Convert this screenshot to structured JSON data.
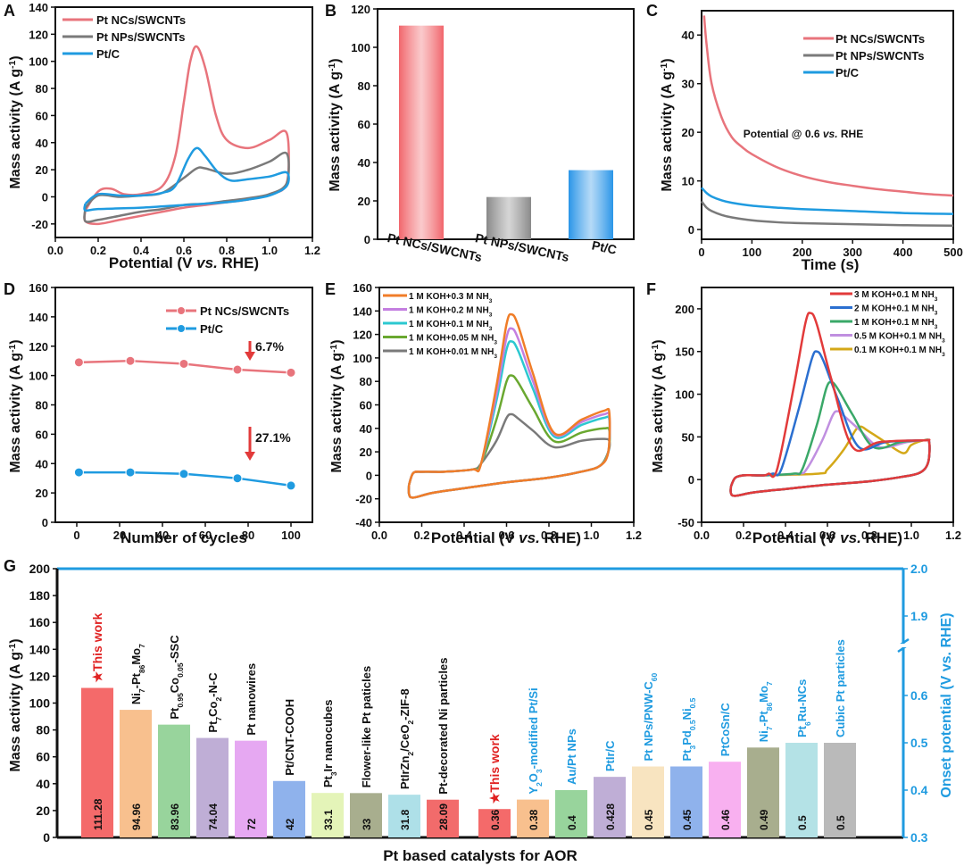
{
  "chart_data": [
    {
      "panel": "A",
      "type": "line",
      "title": "",
      "xlabel": "Potential (V vs. RHE)",
      "ylabel": "Mass activity (A g-1)",
      "xlim": [
        0.0,
        1.2
      ],
      "ylim": [
        -30,
        140
      ],
      "xticks": [
        "0.0",
        "0.2",
        "0.4",
        "0.6",
        "0.8",
        "1.0",
        "1.2"
      ],
      "yticks": [
        "-20",
        "0",
        "20",
        "40",
        "60",
        "80",
        "100",
        "120",
        "140"
      ],
      "legend": "top-left",
      "series": [
        {
          "name": "Pt NCs/SWCNTs",
          "color": "#e8747c",
          "x": [
            0.14,
            0.2,
            0.26,
            0.32,
            0.4,
            0.5,
            0.56,
            0.6,
            0.63,
            0.66,
            0.7,
            0.75,
            0.8,
            0.9,
            1.0,
            1.08,
            1.08,
            1.0,
            0.9,
            0.8,
            0.7,
            0.6,
            0.5,
            0.4,
            0.3,
            0.2,
            0.14,
            0.14
          ],
          "y": [
            -10,
            4,
            6,
            2,
            2,
            8,
            30,
            70,
            100,
            111,
            95,
            60,
            42,
            36,
            42,
            47,
            10,
            2,
            -2,
            -4,
            -6,
            -8,
            -11,
            -14,
            -17,
            -20,
            -18,
            -10
          ]
        },
        {
          "name": "Pt NPs/SWCNTs",
          "color": "#7a7a7a",
          "x": [
            0.14,
            0.2,
            0.3,
            0.4,
            0.5,
            0.6,
            0.66,
            0.7,
            0.8,
            0.9,
            1.0,
            1.08,
            1.08,
            1.0,
            0.9,
            0.8,
            0.7,
            0.6,
            0.5,
            0.4,
            0.3,
            0.2,
            0.14,
            0.14
          ],
          "y": [
            -8,
            1,
            0,
            1,
            3,
            14,
            21,
            21,
            17,
            20,
            26,
            32,
            10,
            2,
            -1,
            -3,
            -5,
            -6,
            -9,
            -11,
            -14,
            -17,
            -18,
            -8
          ]
        },
        {
          "name": "Pt/C",
          "color": "#1f9be0",
          "x": [
            0.14,
            0.2,
            0.3,
            0.4,
            0.5,
            0.56,
            0.62,
            0.66,
            0.7,
            0.76,
            0.82,
            0.9,
            1.0,
            1.08,
            1.08,
            1.0,
            0.9,
            0.8,
            0.6,
            0.4,
            0.2,
            0.14,
            0.14
          ],
          "y": [
            -5,
            2,
            1,
            1,
            3,
            8,
            28,
            36,
            30,
            18,
            12,
            13,
            15,
            18,
            8,
            1,
            -2,
            -4,
            -6,
            -8,
            -9,
            -10,
            -5
          ]
        }
      ]
    },
    {
      "panel": "B",
      "type": "bar",
      "categories": [
        "Pt NCs/SWCNTs",
        "Pt NPs/SWCNTs",
        "Pt/C"
      ],
      "values": [
        111.3,
        22,
        36
      ],
      "colors": [
        "#f2666c",
        "#8a8a8a",
        "#2a96e8"
      ],
      "xlabel": "",
      "ylabel": "Mass activity (A g-1)",
      "ylim": [
        0,
        120
      ],
      "yticks": [
        "0",
        "20",
        "40",
        "60",
        "80",
        "100",
        "120"
      ]
    },
    {
      "panel": "C",
      "type": "line",
      "xlabel": "Time (s)",
      "ylabel": "Mass activity (A g-1)",
      "xlim": [
        0,
        500
      ],
      "ylim": [
        -2,
        45
      ],
      "xticks": [
        "0",
        "100",
        "200",
        "300",
        "400",
        "500"
      ],
      "yticks": [
        "0",
        "10",
        "20",
        "30",
        "40"
      ],
      "legend": "top-right",
      "annotation": "Potential @ 0.6 vs. RHE",
      "series": [
        {
          "name": "Pt NCs/SWCNTs",
          "color": "#e8747c",
          "x": [
            5,
            10,
            20,
            40,
            60,
            80,
            100,
            150,
            200,
            250,
            300,
            350,
            400,
            450,
            500
          ],
          "y": [
            44,
            38,
            30,
            23,
            19,
            17,
            15.5,
            12.8,
            11,
            9.8,
            9,
            8.3,
            7.8,
            7.3,
            7
          ]
        },
        {
          "name": "Pt NPs/SWCNTs",
          "color": "#7a7a7a",
          "x": [
            0,
            10,
            20,
            40,
            60,
            100,
            150,
            200,
            300,
            400,
            500
          ],
          "y": [
            5.8,
            4.5,
            3.8,
            3,
            2.5,
            1.9,
            1.5,
            1.3,
            1.1,
            0.9,
            0.8
          ]
        },
        {
          "name": "Pt/C",
          "color": "#1f9be0",
          "x": [
            0,
            10,
            20,
            40,
            60,
            100,
            150,
            200,
            300,
            400,
            500
          ],
          "y": [
            8.6,
            7.5,
            6.8,
            6,
            5.5,
            4.9,
            4.5,
            4.2,
            3.8,
            3.4,
            3.2
          ]
        }
      ]
    },
    {
      "panel": "D",
      "type": "line",
      "xlabel": "Number of cycles",
      "ylabel": "Mass activity (A g-1)",
      "xlim": [
        -10,
        110
      ],
      "ylim": [
        0,
        160
      ],
      "xticks": [
        "0",
        "20",
        "40",
        "60",
        "80",
        "100"
      ],
      "yticks": [
        "0",
        "20",
        "40",
        "60",
        "80",
        "100",
        "120",
        "140",
        "160"
      ],
      "legend": "top-right",
      "annotations": [
        "6.7%",
        "27.1%"
      ],
      "series": [
        {
          "name": "Pt NCs/SWCNTs",
          "color": "#e8747c",
          "x": [
            1,
            25,
            50,
            75,
            100
          ],
          "y": [
            109,
            110,
            108,
            104,
            102
          ]
        },
        {
          "name": "Pt/C",
          "color": "#1f9be0",
          "x": [
            1,
            25,
            50,
            75,
            100
          ],
          "y": [
            34,
            34,
            33,
            30,
            25
          ]
        }
      ]
    },
    {
      "panel": "E",
      "type": "line",
      "xlabel": "Potential (V vs. RHE)",
      "ylabel": "Mass activity (A g-1)",
      "xlim": [
        0.0,
        1.2
      ],
      "ylim": [
        -40,
        160
      ],
      "xticks": [
        "0.0",
        "0.2",
        "0.4",
        "0.6",
        "0.8",
        "1.0",
        "1.2"
      ],
      "yticks": [
        "-40",
        "-20",
        "0",
        "20",
        "40",
        "60",
        "80",
        "100",
        "120",
        "140",
        "160"
      ],
      "legend": "top-left",
      "series": [
        {
          "name": "1 M KOH+0.3 M NH3",
          "color": "#f07d28",
          "peak": 137,
          "tail": 55,
          "valley": 36
        },
        {
          "name": "1 M KOH+0.2 M NH3",
          "color": "#c47fe0",
          "peak": 125,
          "tail": 52,
          "valley": 35
        },
        {
          "name": "1 M KOH+0.1 M NH3",
          "color": "#2cc8d0",
          "peak": 114,
          "tail": 49,
          "valley": 33
        },
        {
          "name": "1 M KOH+0.05 M NH3",
          "color": "#6aa830",
          "peak": 85,
          "tail": 40,
          "valley": 29
        },
        {
          "name": "1 M KOH+0.01 M NH3",
          "color": "#7a7a7a",
          "peak": 52,
          "tail": 31,
          "valley": 24
        }
      ]
    },
    {
      "panel": "F",
      "type": "line",
      "xlabel": "Potential (V vs. RHE)",
      "ylabel": "Mass activity (A g-1)",
      "xlim": [
        0.0,
        1.2
      ],
      "ylim": [
        -50,
        225
      ],
      "xticks": [
        "0.0",
        "0.2",
        "0.4",
        "0.6",
        "0.8",
        "1.0",
        "1.2"
      ],
      "yticks": [
        "-50",
        "0",
        "50",
        "100",
        "150",
        "200"
      ],
      "legend": "top-right",
      "series": [
        {
          "name": "3 M KOH+0.1 M NH3",
          "color": "#e23a3a",
          "peak": 195,
          "peakX": 0.52,
          "onset": 0.36
        },
        {
          "name": "2 M KOH+0.1 M NH3",
          "color": "#2b6fd0",
          "peak": 150,
          "peakX": 0.55,
          "onset": 0.38
        },
        {
          "name": "1 M KOH+0.1 M NH3",
          "color": "#3aa868",
          "peak": 114,
          "peakX": 0.62,
          "onset": 0.48
        },
        {
          "name": "0.5 M KOH+0.1 M NH3",
          "color": "#c08fe0",
          "peak": 80,
          "peakX": 0.65,
          "onset": 0.5
        },
        {
          "name": "0.1 M KOH+0.1 M NH3",
          "color": "#d4a818",
          "peak": 62,
          "peakX": 0.76,
          "onset": 0.6
        }
      ]
    },
    {
      "panel": "G",
      "type": "bar",
      "xlabel": "Pt based catalysts for AOR",
      "ylabel": "Mass activity (A g-1)",
      "ylabel_right": "Onset potential (V vs. RHE)",
      "ylim": [
        0,
        200
      ],
      "yticks": [
        "0",
        "20",
        "40",
        "60",
        "80",
        "100",
        "120",
        "140",
        "160",
        "180",
        "200"
      ],
      "ylim_right": [
        0.3,
        2.0
      ],
      "yticks_right": [
        "0.3",
        "0.4",
        "0.5",
        "0.6",
        "1.9",
        "2.0"
      ],
      "axis_break": "between 0.65 and 1.85",
      "mass_activity": {
        "categories": [
          "★This work",
          "Ni7-Pt86Mo7",
          "Pt0.95Co0.05-SSC",
          "Pt7Co2-N-C",
          "Pt nanowires",
          "Pt/CNT-COOH",
          "Pt3Ir nanocubes",
          "Flower-like Pt paticles",
          "PtIrZn2/CeO2-ZIF-8",
          "Pt-decorated Ni particles"
        ],
        "values": [
          111.28,
          94.96,
          83.96,
          74.04,
          72,
          42,
          33.1,
          33,
          31.8,
          28.09
        ],
        "labels": [
          "111.28",
          "94.96",
          "83.96",
          "74.04",
          "72",
          "42",
          "33.1",
          "33",
          "31.8",
          "28.09"
        ],
        "colors": [
          "#f46a6a",
          "#f8c08e",
          "#98d49c",
          "#bfaed6",
          "#e6a8f2",
          "#8fb2ec",
          "#e4f4b8",
          "#a8ae8e",
          "#aee0e8",
          "#f26b6b"
        ]
      },
      "onset_potential": {
        "categories": [
          "★This work",
          "Y2O3-modified Pt/Si",
          "Au/Pt NPs",
          "PtIr/C",
          "Pt NPs/PNW-C60",
          "Pt3Pd0.5Ni0.5",
          "PtCoSn/C",
          "Ni7-Pt86Mo7",
          "Pt6Ru-NCs",
          "Cubic Pt particles"
        ],
        "values": [
          0.36,
          0.38,
          0.4,
          0.428,
          0.45,
          0.45,
          0.46,
          0.49,
          0.5,
          0.5
        ],
        "labels": [
          "0.36",
          "0.38",
          "0.4",
          "0.428",
          "0.45",
          "0.45",
          "0.46",
          "0.49",
          "0.5",
          "0.5"
        ],
        "colors": [
          "#f46a6a",
          "#f8c08e",
          "#98d49c",
          "#bfaed6",
          "#f8e4c0",
          "#8fb2ec",
          "#f8b0f0",
          "#a8ae8e",
          "#b4e2e6",
          "#bababa"
        ]
      }
    }
  ],
  "panel_letters": [
    "A",
    "B",
    "C",
    "D",
    "E",
    "F",
    "G"
  ],
  "colors": {
    "axis": "#111111",
    "right_axis": "#1f9be0",
    "highlight": "#e02020"
  }
}
